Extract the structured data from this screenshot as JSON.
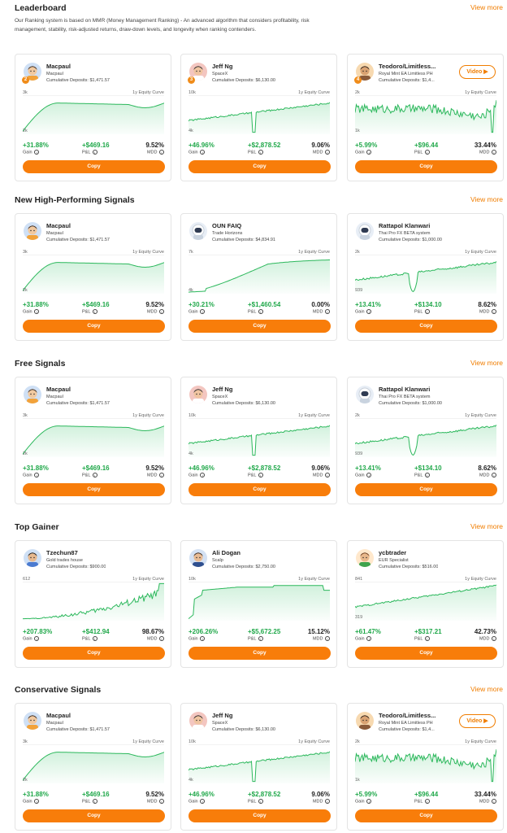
{
  "accent_color": "#f87d0a",
  "gain_color": "#20a84a",
  "sections": [
    {
      "title": "Leaderboard",
      "view_more": "View more",
      "description": "Our Ranking system is based on MMR (Money Management Ranking) - An advanced algorithm that considers profitability, risk management, stability, risk-adjusted returns, draw-down levels, and longevity when ranking contenders.",
      "cards": [
        {
          "name": "Macpaul",
          "subtitle": "Macpaul",
          "deposits": "Cumulative Deposits: $1,471.57",
          "rank": "2",
          "video": "",
          "y_max": "3k",
          "y_min": "2k",
          "equity_label": "1y Equity Curve",
          "gain": "+31.88%",
          "pnl": "+$469.16",
          "mdd": "9.52%",
          "gain_label": "Gain",
          "pnl_label": "P&L",
          "mdd_label": "MDD",
          "copy": "Copy",
          "avatar": "avatar-macpaul",
          "curve": "hump"
        },
        {
          "name": "Jeff Ng",
          "subtitle": "SpaceX",
          "deposits": "Cumulative Deposits: $6,130.00",
          "rank": "3",
          "video": "",
          "y_max": "10k",
          "y_min": "4k",
          "equity_label": "1y Equity Curve",
          "gain": "+46.96%",
          "pnl": "+$2,878.52",
          "mdd": "9.06%",
          "gain_label": "Gain",
          "pnl_label": "P&L",
          "mdd_label": "MDD",
          "copy": "Copy",
          "avatar": "avatar-jeff",
          "curve": "spike"
        },
        {
          "name": "Teodoro/Limitless...",
          "subtitle": "Royal Mint EA Limitless PH",
          "deposits": "Cumulative Deposits: $1,4...",
          "rank": "4",
          "video": "Video ▶",
          "y_max": "2k",
          "y_min": "1k",
          "equity_label": "1y Equity Curve",
          "gain": "+5.99%",
          "pnl": "+$96.44",
          "mdd": "33.44%",
          "gain_label": "Gain",
          "pnl_label": "P&L",
          "mdd_label": "MDD",
          "copy": "Copy",
          "avatar": "avatar-teodoro",
          "curve": "noisy"
        }
      ]
    },
    {
      "title": "New High-Performing Signals",
      "view_more": "View more",
      "description": "",
      "cards": [
        {
          "name": "Macpaul",
          "subtitle": "Macpaul",
          "deposits": "Cumulative Deposits: $1,471.57",
          "rank": "",
          "video": "",
          "y_max": "3k",
          "y_min": "2k",
          "equity_label": "1y Equity Curve",
          "gain": "+31.88%",
          "pnl": "+$469.16",
          "mdd": "9.52%",
          "gain_label": "Gain",
          "pnl_label": "P&L",
          "mdd_label": "MDD",
          "copy": "Copy",
          "avatar": "avatar-macpaul",
          "curve": "hump"
        },
        {
          "name": "OUN FAIQ",
          "subtitle": "Trade Horizons",
          "deposits": "Cumulative Deposits: $4,834.91",
          "rank": "",
          "video": "",
          "y_max": "7k",
          "y_min": "4k",
          "equity_label": "1y Equity Curve",
          "gain": "+30.21%",
          "pnl": "+$1,460.54",
          "mdd": "0.00%",
          "gain_label": "Gain",
          "pnl_label": "P&L",
          "mdd_label": "MDD",
          "copy": "Copy",
          "avatar": "avatar-astro",
          "curve": "smooth"
        },
        {
          "name": "Rattapol Klanwari",
          "subtitle": "Thai Pro FX BETA system",
          "deposits": "Cumulative Deposits: $1,000.00",
          "rank": "",
          "video": "",
          "y_max": "2k",
          "y_min": "939",
          "equity_label": "1y Equity Curve",
          "gain": "+13.41%",
          "pnl": "+$134.10",
          "mdd": "8.62%",
          "gain_label": "Gain",
          "pnl_label": "P&L",
          "mdd_label": "MDD",
          "copy": "Copy",
          "avatar": "avatar-astro",
          "curve": "dip"
        }
      ]
    },
    {
      "title": "Free Signals",
      "view_more": "View more",
      "description": "",
      "cards": [
        {
          "name": "Macpaul",
          "subtitle": "Macpaul",
          "deposits": "Cumulative Deposits: $1,471.57",
          "rank": "",
          "video": "",
          "y_max": "3k",
          "y_min": "2k",
          "equity_label": "1y Equity Curve",
          "gain": "+31.88%",
          "pnl": "+$469.16",
          "mdd": "9.52%",
          "gain_label": "Gain",
          "pnl_label": "P&L",
          "mdd_label": "MDD",
          "copy": "Copy",
          "avatar": "avatar-macpaul",
          "curve": "hump"
        },
        {
          "name": "Jeff Ng",
          "subtitle": "SpaceX",
          "deposits": "Cumulative Deposits: $6,130.00",
          "rank": "",
          "video": "",
          "y_max": "10k",
          "y_min": "4k",
          "equity_label": "1y Equity Curve",
          "gain": "+46.96%",
          "pnl": "+$2,878.52",
          "mdd": "9.06%",
          "gain_label": "Gain",
          "pnl_label": "P&L",
          "mdd_label": "MDD",
          "copy": "Copy",
          "avatar": "avatar-jeff",
          "curve": "spike"
        },
        {
          "name": "Rattapol Klanwari",
          "subtitle": "Thai Pro FX BETA system",
          "deposits": "Cumulative Deposits: $1,000.00",
          "rank": "",
          "video": "",
          "y_max": "2k",
          "y_min": "939",
          "equity_label": "1y Equity Curve",
          "gain": "+13.41%",
          "pnl": "+$134.10",
          "mdd": "8.62%",
          "gain_label": "Gain",
          "pnl_label": "P&L",
          "mdd_label": "MDD",
          "copy": "Copy",
          "avatar": "avatar-astro",
          "curve": "dip"
        }
      ]
    },
    {
      "title": "Top Gainer",
      "view_more": "View more",
      "description": "",
      "cards": [
        {
          "name": "Tzechun87",
          "subtitle": "Gold trades house",
          "deposits": "Cumulative Deposits: $900.00",
          "rank": "",
          "video": "",
          "y_max": "612",
          "y_min": "",
          "equity_label": "1y Equity Curve",
          "gain": "+207.83%",
          "pnl": "+$412.94",
          "mdd": "98.67%",
          "gain_label": "Gain",
          "pnl_label": "P&L",
          "mdd_label": "MDD",
          "copy": "Copy",
          "avatar": "avatar-tzechun",
          "curve": "rising"
        },
        {
          "name": "Ali Dogan",
          "subtitle": "Scalp",
          "deposits": "Cumulative Deposits: $2,750.00",
          "rank": "",
          "video": "",
          "y_max": "10k",
          "y_min": "",
          "equity_label": "1y Equity Curve",
          "gain": "+206.26%",
          "pnl": "+$5,672.25",
          "mdd": "15.12%",
          "gain_label": "Gain",
          "pnl_label": "P&L",
          "mdd_label": "MDD",
          "copy": "Copy",
          "avatar": "avatar-ali",
          "curve": "jump"
        },
        {
          "name": "ycbtrader",
          "subtitle": "EUR Specialist",
          "deposits": "Cumulative Deposits: $516.00",
          "rank": "",
          "video": "",
          "y_max": "841",
          "y_min": "319",
          "equity_label": "1y Equity Curve",
          "gain": "+61.47%",
          "pnl": "+$317.21",
          "mdd": "42.73%",
          "gain_label": "Gain",
          "pnl_label": "P&L",
          "mdd_label": "MDD",
          "copy": "Copy",
          "avatar": "avatar-ycb",
          "curve": "steady"
        }
      ]
    },
    {
      "title": "Conservative Signals",
      "view_more": "View more",
      "description": "",
      "cards": [
        {
          "name": "Macpaul",
          "subtitle": "Macpaul",
          "deposits": "Cumulative Deposits: $1,471.57",
          "rank": "",
          "video": "",
          "y_max": "3k",
          "y_min": "2k",
          "equity_label": "1y Equity Curve",
          "gain": "+31.88%",
          "pnl": "+$469.16",
          "mdd": "9.52%",
          "gain_label": "Gain",
          "pnl_label": "P&L",
          "mdd_label": "MDD",
          "copy": "Copy",
          "avatar": "avatar-macpaul",
          "curve": "hump"
        },
        {
          "name": "Jeff Ng",
          "subtitle": "SpaceX",
          "deposits": "Cumulative Deposits: $6,130.00",
          "rank": "",
          "video": "",
          "y_max": "10k",
          "y_min": "4k",
          "equity_label": "1y Equity Curve",
          "gain": "+46.96%",
          "pnl": "+$2,878.52",
          "mdd": "9.06%",
          "gain_label": "Gain",
          "pnl_label": "P&L",
          "mdd_label": "MDD",
          "copy": "Copy",
          "avatar": "avatar-jeff",
          "curve": "spike"
        },
        {
          "name": "Teodoro/Limitless...",
          "subtitle": "Royal Mint EA Limitless PH",
          "deposits": "Cumulative Deposits: $1,4...",
          "rank": "",
          "video": "Video ▶",
          "y_max": "2k",
          "y_min": "1k",
          "equity_label": "1y Equity Curve",
          "gain": "+5.99%",
          "pnl": "+$96.44",
          "mdd": "33.44%",
          "gain_label": "Gain",
          "pnl_label": "P&L",
          "mdd_label": "MDD",
          "copy": "Copy",
          "avatar": "avatar-teodoro",
          "curve": "noisy"
        }
      ]
    }
  ]
}
